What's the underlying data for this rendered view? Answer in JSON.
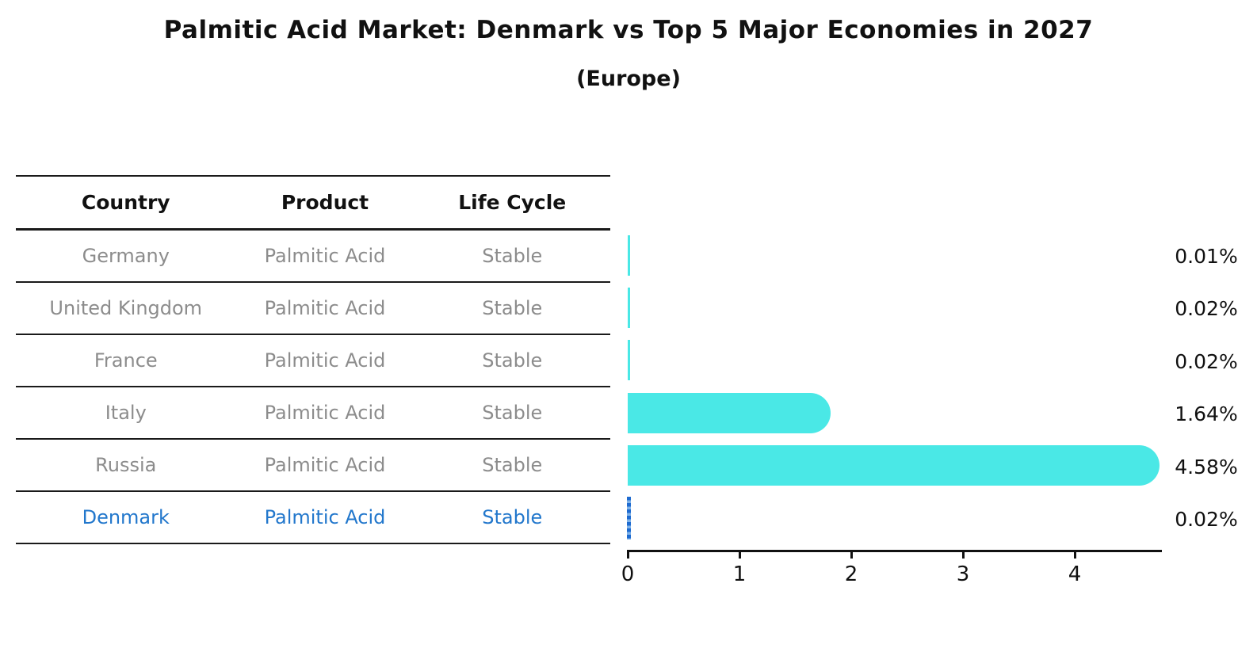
{
  "title": "Palmitic Acid Market: Denmark vs Top 5 Major Economies in 2027",
  "subtitle": "(Europe)",
  "table": {
    "headers": {
      "country": "Country",
      "product": "Product",
      "life_cycle": "Life Cycle"
    },
    "rows": [
      {
        "country": "Germany",
        "product": "Palmitic Acid",
        "life_cycle": "Stable",
        "highlight": false
      },
      {
        "country": "United Kingdom",
        "product": "Palmitic Acid",
        "life_cycle": "Stable",
        "highlight": false
      },
      {
        "country": "France",
        "product": "Palmitic Acid",
        "life_cycle": "Stable",
        "highlight": false
      },
      {
        "country": "Italy",
        "product": "Palmitic Acid",
        "life_cycle": "Stable",
        "highlight": false
      },
      {
        "country": "Russia",
        "product": "Palmitic Acid",
        "life_cycle": "Stable",
        "highlight": false
      },
      {
        "country": "Denmark",
        "product": "Palmitic Acid",
        "life_cycle": "Stable",
        "highlight": true
      }
    ]
  },
  "chart_data": {
    "type": "bar",
    "orientation": "horizontal",
    "title": "Palmitic Acid Market: Denmark vs Top 5 Major Economies in 2027",
    "subtitle": "(Europe)",
    "categories": [
      "Germany",
      "United Kingdom",
      "France",
      "Italy",
      "Russia",
      "Denmark"
    ],
    "values": [
      0.01,
      0.02,
      0.02,
      1.64,
      4.58,
      0.02
    ],
    "value_labels": [
      "0.01%",
      "0.02%",
      "0.02%",
      "1.64%",
      "4.58%",
      "0.02%"
    ],
    "x_ticks": [
      0,
      1,
      2,
      3,
      4
    ],
    "xlim": [
      0,
      4.78
    ],
    "grid": false,
    "legend": "none",
    "highlight_index": 5
  },
  "colors": {
    "bar": "#4AE8E6",
    "highlight_dash_dark": "#1E6BD0",
    "highlight_dash_light": "#7FB2E8",
    "axis": "#111111",
    "row_text": "#8C8C8C",
    "highlight_text": "#2277CC"
  }
}
